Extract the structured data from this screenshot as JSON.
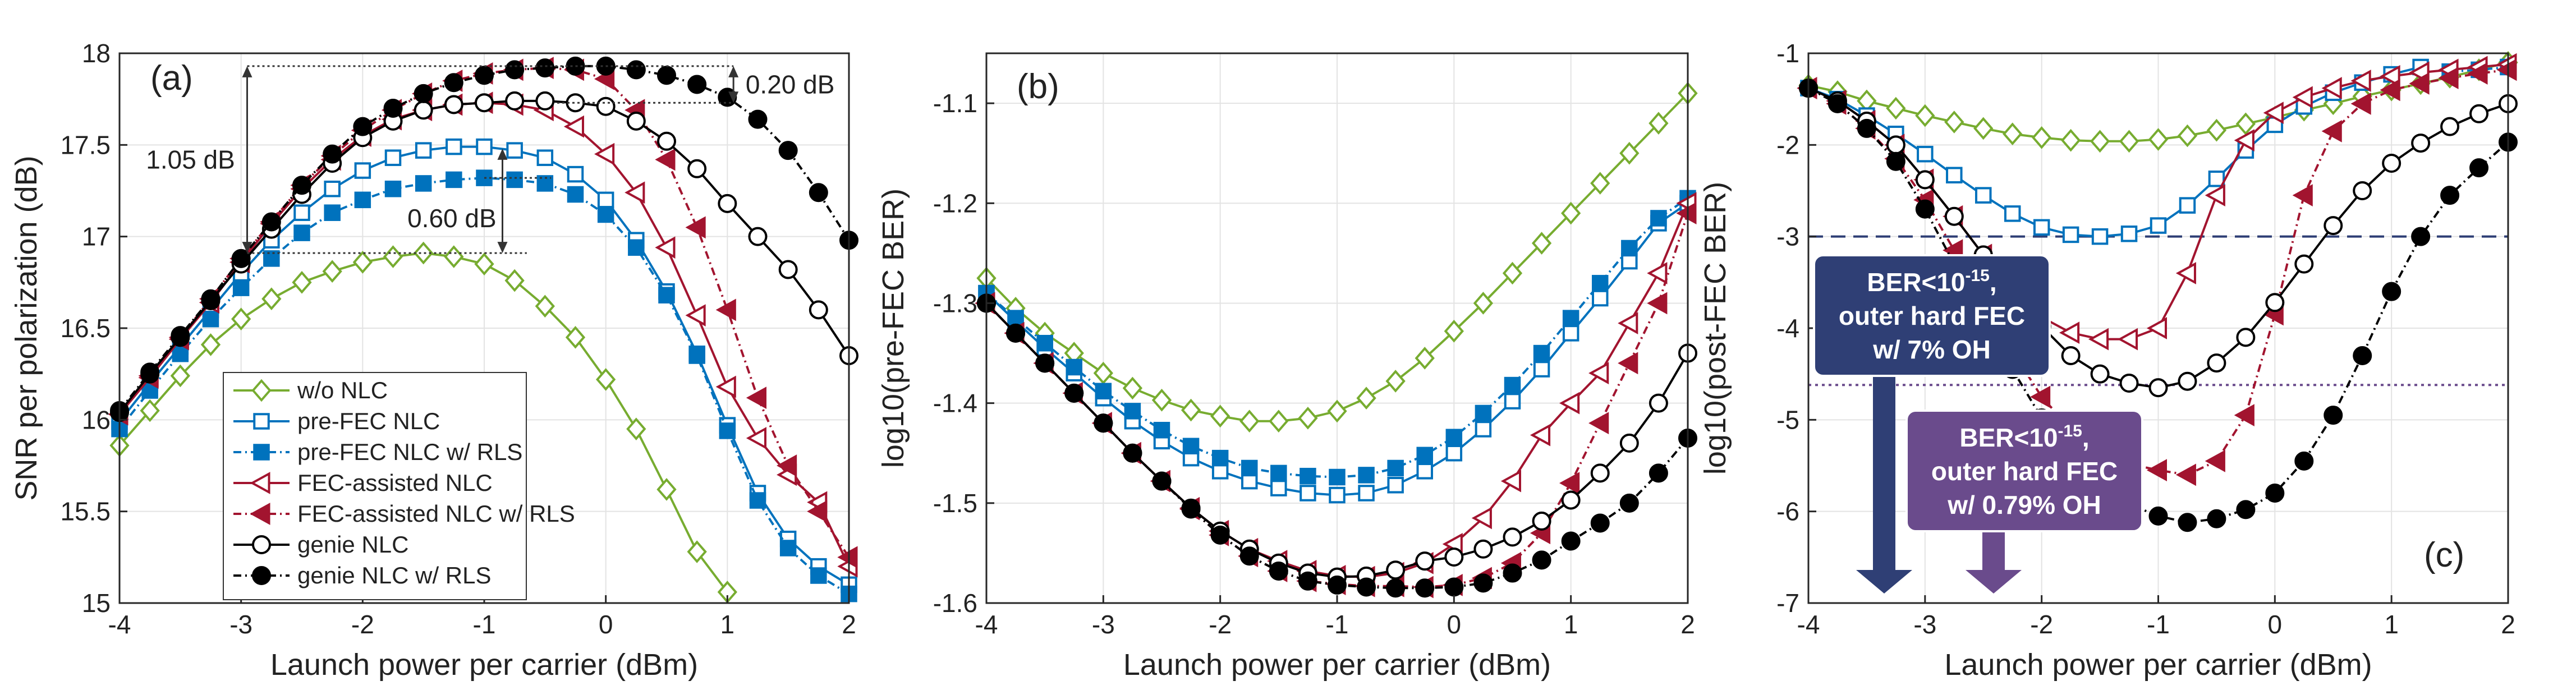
{
  "colors": {
    "wo_nlc": "#77ac30",
    "pre_fec": "#0072bd",
    "fec_assisted": "#a2142f",
    "genie": "#000000",
    "outer_fec_7": "#2f3f75",
    "outer_fec_079": "#6a4b8c"
  },
  "legend": [
    {
      "label": "w/o NLC",
      "series": "wo"
    },
    {
      "label": "pre-FEC NLC",
      "series": "pre"
    },
    {
      "label": "pre-FEC NLC w/ RLS",
      "series": "preR"
    },
    {
      "label": "FEC-assisted NLC",
      "series": "fec"
    },
    {
      "label": "FEC-assisted NLC w/ RLS",
      "series": "fecR"
    },
    {
      "label": "genie NLC",
      "series": "gen"
    },
    {
      "label": "genie NLC w/ RLS",
      "series": "genR"
    }
  ],
  "chart_data": [
    {
      "type": "line",
      "panel_label": "(a)",
      "xlabel": "Launch power per carrier (dBm)",
      "ylabel": "SNR per polarization  (dB)",
      "xlim": [
        -4,
        2
      ],
      "ylim": [
        15,
        18
      ],
      "xticks": [
        "-4",
        "-3",
        "-2",
        "-1",
        "0",
        "1",
        "2"
      ],
      "yticks": [
        "15",
        "15.5",
        "16",
        "16.5",
        "17",
        "17.5",
        "18"
      ],
      "x": [
        -4,
        -3.75,
        -3.5,
        -3.25,
        -3,
        -2.75,
        -2.5,
        -2.25,
        -2,
        -1.75,
        -1.5,
        -1.25,
        -1,
        -0.75,
        -0.5,
        -0.25,
        0,
        0.25,
        0.5,
        0.75,
        1,
        1.25,
        1.5,
        1.75,
        2
      ],
      "series": [
        {
          "key": "wo",
          "name": "w/o NLC",
          "values": [
            15.86,
            16.05,
            16.24,
            16.41,
            16.55,
            16.66,
            16.75,
            16.81,
            16.86,
            16.89,
            16.91,
            16.89,
            16.85,
            16.76,
            16.62,
            16.45,
            16.22,
            15.95,
            15.62,
            15.28,
            15.06,
            null,
            null,
            null,
            null
          ]
        },
        {
          "key": "pre",
          "name": "pre-FEC NLC",
          "values": [
            15.99,
            16.2,
            16.4,
            16.6,
            16.8,
            16.98,
            17.13,
            17.26,
            17.36,
            17.43,
            17.47,
            17.49,
            17.49,
            17.47,
            17.43,
            17.34,
            17.2,
            16.98,
            16.7,
            16.36,
            15.97,
            15.6,
            15.35,
            15.2,
            15.1
          ]
        },
        {
          "key": "preR",
          "name": "pre-FEC NLC w/ RLS",
          "values": [
            15.95,
            16.16,
            16.36,
            16.55,
            16.72,
            16.88,
            17.02,
            17.13,
            17.2,
            17.26,
            17.29,
            17.31,
            17.32,
            17.31,
            17.29,
            17.23,
            17.12,
            16.94,
            16.68,
            16.35,
            15.94,
            15.56,
            15.3,
            15.15,
            15.05
          ]
        },
        {
          "key": "fec",
          "name": "FEC-assisted NLC",
          "values": [
            16.03,
            16.23,
            16.44,
            16.64,
            16.86,
            17.07,
            17.26,
            17.42,
            17.55,
            17.64,
            17.69,
            17.72,
            17.73,
            17.72,
            17.69,
            17.6,
            17.45,
            17.24,
            16.94,
            16.57,
            16.18,
            15.9,
            15.7,
            15.55,
            15.2
          ]
        },
        {
          "key": "fecR",
          "name": "FEC-assisted NLC w/ RLS",
          "values": [
            16.03,
            16.24,
            16.45,
            16.66,
            16.88,
            17.08,
            17.28,
            17.44,
            17.58,
            17.69,
            17.78,
            17.85,
            17.89,
            17.91,
            17.92,
            17.91,
            17.86,
            17.69,
            17.42,
            17.05,
            16.6,
            16.12,
            15.75,
            15.5,
            15.25
          ]
        },
        {
          "key": "gen",
          "name": "genie NLC",
          "values": [
            16.04,
            16.25,
            16.45,
            16.65,
            16.85,
            17.04,
            17.23,
            17.4,
            17.54,
            17.63,
            17.69,
            17.72,
            17.73,
            17.74,
            17.74,
            17.73,
            17.71,
            17.63,
            17.52,
            17.37,
            17.18,
            17.0,
            16.82,
            16.6,
            16.35
          ]
        },
        {
          "key": "genR",
          "name": "genie NLC w/ RLS",
          "values": [
            16.05,
            16.26,
            16.46,
            16.66,
            16.88,
            17.08,
            17.28,
            17.45,
            17.6,
            17.7,
            17.78,
            17.84,
            17.88,
            17.91,
            17.92,
            17.93,
            17.93,
            17.91,
            17.88,
            17.83,
            17.76,
            17.64,
            17.47,
            17.24,
            16.98
          ]
        }
      ],
      "annotations": {
        "delta_020": "0.20 dB",
        "delta_105": "1.05 dB",
        "delta_060": "0.60 dB"
      }
    },
    {
      "type": "line",
      "panel_label": "(b)",
      "xlabel": "Launch power per carrier (dBm)",
      "ylabel": "log10(pre-FEC BER)",
      "xlim": [
        -4,
        2
      ],
      "ylim": [
        -1.6,
        -1.05
      ],
      "xticks": [
        "-4",
        "-3",
        "-2",
        "-1",
        "0",
        "1",
        "2"
      ],
      "yticks": [
        "-1.6",
        "-1.5",
        "-1.4",
        "-1.3",
        "-1.2",
        "-1.1"
      ],
      "x": [
        -4,
        -3.75,
        -3.5,
        -3.25,
        -3,
        -2.75,
        -2.5,
        -2.25,
        -2,
        -1.75,
        -1.5,
        -1.25,
        -1,
        -0.75,
        -0.5,
        -0.25,
        0,
        0.25,
        0.5,
        0.75,
        1,
        1.25,
        1.5,
        1.75,
        2
      ],
      "series": [
        {
          "key": "wo",
          "name": "w/o NLC",
          "values": [
            -1.275,
            -1.305,
            -1.33,
            -1.35,
            -1.37,
            -1.385,
            -1.397,
            -1.407,
            -1.413,
            -1.418,
            -1.418,
            -1.415,
            -1.408,
            -1.395,
            -1.378,
            -1.355,
            -1.328,
            -1.3,
            -1.27,
            -1.24,
            -1.21,
            -1.18,
            -1.15,
            -1.12,
            -1.09
          ]
        },
        {
          "key": "pre",
          "name": "pre-FEC NLC",
          "values": [
            -1.29,
            -1.318,
            -1.345,
            -1.37,
            -1.395,
            -1.418,
            -1.438,
            -1.455,
            -1.468,
            -1.478,
            -1.485,
            -1.49,
            -1.492,
            -1.49,
            -1.482,
            -1.468,
            -1.45,
            -1.426,
            -1.398,
            -1.366,
            -1.33,
            -1.295,
            -1.258,
            -1.22,
            -1.2
          ]
        },
        {
          "key": "preR",
          "name": "pre-FEC NLC w/ RLS",
          "values": [
            -1.29,
            -1.315,
            -1.34,
            -1.364,
            -1.388,
            -1.408,
            -1.427,
            -1.443,
            -1.455,
            -1.465,
            -1.47,
            -1.473,
            -1.474,
            -1.472,
            -1.465,
            -1.452,
            -1.434,
            -1.41,
            -1.382,
            -1.35,
            -1.315,
            -1.28,
            -1.245,
            -1.215,
            -1.195
          ]
        },
        {
          "key": "fec",
          "name": "FEC-assisted NLC",
          "values": [
            -1.3,
            -1.33,
            -1.36,
            -1.39,
            -1.42,
            -1.45,
            -1.478,
            -1.505,
            -1.528,
            -1.546,
            -1.558,
            -1.568,
            -1.573,
            -1.574,
            -1.57,
            -1.56,
            -1.541,
            -1.515,
            -1.478,
            -1.432,
            -1.4,
            -1.37,
            -1.32,
            -1.27,
            -1.2
          ]
        },
        {
          "key": "fecR",
          "name": "FEC-assisted NLC w/ RLS",
          "values": [
            -1.3,
            -1.33,
            -1.36,
            -1.39,
            -1.42,
            -1.45,
            -1.478,
            -1.506,
            -1.532,
            -1.553,
            -1.568,
            -1.578,
            -1.581,
            -1.583,
            -1.583,
            -1.584,
            -1.582,
            -1.575,
            -1.56,
            -1.53,
            -1.48,
            -1.42,
            -1.36,
            -1.3,
            -1.21
          ]
        },
        {
          "key": "gen",
          "name": "genie NLC",
          "values": [
            -1.3,
            -1.33,
            -1.36,
            -1.39,
            -1.42,
            -1.45,
            -1.478,
            -1.505,
            -1.528,
            -1.546,
            -1.56,
            -1.57,
            -1.574,
            -1.573,
            -1.567,
            -1.558,
            -1.554,
            -1.546,
            -1.534,
            -1.518,
            -1.497,
            -1.47,
            -1.44,
            -1.4,
            -1.35
          ]
        },
        {
          "key": "genR",
          "name": "genie NLC w/ RLS",
          "values": [
            -1.3,
            -1.33,
            -1.36,
            -1.39,
            -1.42,
            -1.45,
            -1.478,
            -1.506,
            -1.532,
            -1.553,
            -1.568,
            -1.578,
            -1.582,
            -1.584,
            -1.585,
            -1.585,
            -1.584,
            -1.58,
            -1.57,
            -1.557,
            -1.538,
            -1.52,
            -1.5,
            -1.47,
            -1.435
          ]
        }
      ]
    },
    {
      "type": "line",
      "panel_label": "(c)",
      "xlabel": "Launch power per carrier (dBm)",
      "ylabel": "log10(post-FEC BER)",
      "xlim": [
        -4,
        2
      ],
      "ylim": [
        -7,
        -1
      ],
      "xticks": [
        "-4",
        "-3",
        "-2",
        "-1",
        "0",
        "1",
        "2"
      ],
      "yticks": [
        "-7",
        "-6",
        "-5",
        "-4",
        "-3",
        "-2",
        "-1"
      ],
      "x": [
        -4,
        -3.75,
        -3.5,
        -3.25,
        -3,
        -2.75,
        -2.5,
        -2.25,
        -2,
        -1.75,
        -1.5,
        -1.25,
        -1,
        -0.75,
        -0.5,
        -0.25,
        0,
        0.25,
        0.5,
        0.75,
        1,
        1.25,
        1.5,
        1.75,
        2
      ],
      "threshold_7": -3.0,
      "threshold_079": -4.62,
      "series": [
        {
          "key": "wo",
          "name": "w/o NLC",
          "values": [
            -1.35,
            -1.42,
            -1.52,
            -1.6,
            -1.68,
            -1.75,
            -1.82,
            -1.88,
            -1.92,
            -1.95,
            -1.96,
            -1.96,
            -1.94,
            -1.9,
            -1.84,
            -1.77,
            -1.7,
            -1.62,
            -1.55,
            -1.47,
            -1.4,
            -1.33,
            -1.26,
            -1.18,
            -1.1
          ]
        },
        {
          "key": "pre",
          "name": "pre-FEC NLC",
          "values": [
            -1.38,
            -1.5,
            -1.68,
            -1.88,
            -2.1,
            -2.33,
            -2.55,
            -2.75,
            -2.9,
            -2.98,
            -3.0,
            -2.97,
            -2.88,
            -2.66,
            -2.37,
            -2.06,
            -1.78,
            -1.58,
            -1.43,
            -1.32,
            -1.23,
            -1.15,
            null,
            null,
            null
          ]
        },
        {
          "key": "preR",
          "name": "pre-FEC NLC w/ RLS",
          "values": [
            null,
            null,
            null,
            null,
            null,
            null,
            null,
            null,
            null,
            null,
            null,
            null,
            null,
            null,
            null,
            null,
            null,
            null,
            null,
            null,
            null,
            null,
            -1.2,
            -1.18,
            -1.15
          ]
        },
        {
          "key": "fec",
          "name": "FEC-assisted NLC",
          "values": [
            -1.38,
            -1.52,
            -1.74,
            -2.0,
            -2.38,
            -2.78,
            -3.2,
            -3.58,
            -3.88,
            -4.05,
            -4.12,
            -4.12,
            -4.0,
            -3.4,
            -2.55,
            -1.95,
            -1.65,
            -1.48,
            -1.38,
            -1.3,
            -1.25,
            -1.21,
            -1.18,
            -1.15,
            -1.12
          ]
        },
        {
          "key": "fecR",
          "name": "FEC-assisted NLC w/ RLS",
          "values": [
            -1.38,
            -1.55,
            -1.82,
            -2.15,
            -2.6,
            -3.15,
            -3.7,
            -4.25,
            -4.75,
            -5.1,
            -5.35,
            -5.48,
            -5.55,
            -5.6,
            -5.45,
            -4.95,
            -3.85,
            -2.55,
            -1.85,
            -1.55,
            -1.4,
            -1.33,
            -1.27,
            -1.22,
            -1.18
          ]
        },
        {
          "key": "gen",
          "name": "genie NLC",
          "values": [
            -1.38,
            -1.52,
            -1.74,
            -2.0,
            -2.38,
            -2.78,
            -3.2,
            -3.6,
            -3.98,
            -4.3,
            -4.5,
            -4.6,
            -4.65,
            -4.58,
            -4.38,
            -4.1,
            -3.72,
            -3.3,
            -2.88,
            -2.5,
            -2.2,
            -1.98,
            -1.8,
            -1.66,
            -1.55
          ]
        },
        {
          "key": "genR",
          "name": "genie NLC w/ RLS",
          "values": [
            -1.38,
            -1.55,
            -1.82,
            -2.18,
            -2.7,
            -3.3,
            -3.88,
            -4.45,
            -4.98,
            -5.38,
            -5.7,
            -5.92,
            -6.05,
            -6.12,
            -6.08,
            -5.98,
            -5.8,
            -5.45,
            -4.95,
            -4.3,
            -3.6,
            -3.0,
            -2.55,
            -2.25,
            -1.97
          ]
        }
      ],
      "annotations": {
        "box1": [
          "BER<10",
          "-15",
          ",",
          "outer hard FEC",
          "w/ 7% OH"
        ],
        "box2": [
          "BER<10",
          "-15",
          ",",
          "outer hard FEC",
          "w/ 0.79% OH"
        ]
      }
    }
  ]
}
